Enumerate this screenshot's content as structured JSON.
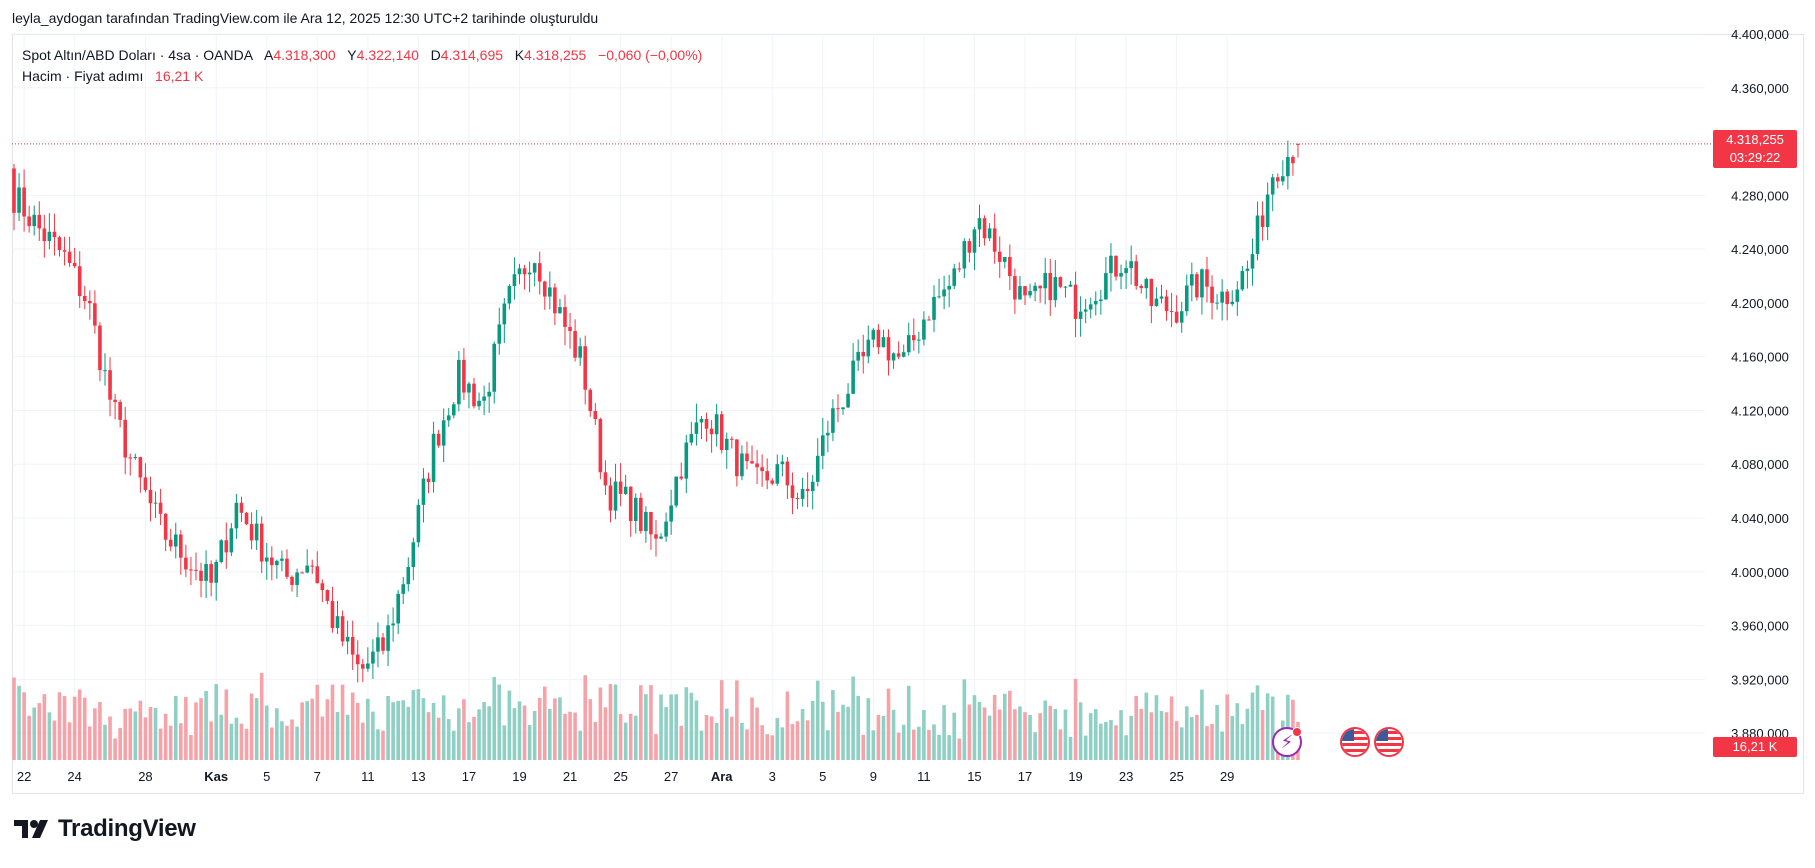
{
  "caption": "leyla_aydogan tarafından TradingView.com ile Ara 12, 2025 12:30 UTC+2 tarihinde oluşturuldu",
  "legend": {
    "symbol": "Spot Altın/ABD Doları · 4sa · OANDA",
    "open_label": "A",
    "open": "4.318,300",
    "high_label": "Y",
    "high": "4.322,140",
    "low_label": "D",
    "low": "4.314,695",
    "close_label": "K",
    "close": "4.318,255",
    "change": "−0,060 (−0,00%)",
    "volume_label": "Hacim · Fiyat adımı",
    "volume_value": "16,21 K"
  },
  "last_price": {
    "price": "4.318,255",
    "countdown": "03:29:22"
  },
  "volume_tag": "16,21 K",
  "brand": "TradingView",
  "colors": {
    "up": "#089981",
    "down": "#f23645",
    "up_vol": "#8fd0c4",
    "down_vol": "#f5a3a9",
    "grid": "#f0f3fa",
    "axis_text": "#131722"
  },
  "chart_data": {
    "type": "candlestick",
    "title": "Spot Altın/ABD Doları · 4sa · OANDA",
    "y_axis": {
      "ylim": [
        3860000,
        4400000
      ],
      "ticks": [
        3880000,
        3920000,
        3960000,
        4000000,
        4040000,
        4080000,
        4120000,
        4160000,
        4200000,
        4240000,
        4280000,
        4320000,
        4360000,
        4400000
      ],
      "tick_labels": [
        "3.880,000",
        "3.920,000",
        "3.960,000",
        "4.000,000",
        "4.040,000",
        "4.080,000",
        "4.120,000",
        "4.160,000",
        "4.200,000",
        "4.240,000",
        "4.280,000",
        "4.320,000",
        "4.360,000",
        "4.400,000"
      ]
    },
    "x_axis": {
      "tick_labels": [
        "22",
        "24",
        "28",
        "Kas",
        "5",
        "7",
        "11",
        "13",
        "17",
        "19",
        "21",
        "25",
        "27",
        "Ara",
        "3",
        "5",
        "9",
        "11",
        "15",
        "17",
        "19",
        "23",
        "25",
        "29"
      ],
      "bold_labels": [
        "Kas",
        "Ara"
      ],
      "tick_bar_index": [
        2,
        12,
        26,
        40,
        50,
        60,
        70,
        80,
        90,
        100,
        110,
        120,
        130,
        140,
        150,
        160,
        170,
        180,
        190,
        200,
        210,
        220,
        230,
        240
      ]
    },
    "levels": [
      4280000,
      4255000,
      4235000,
      4200000,
      4120000,
      4070000,
      4030000,
      4010000,
      3990000,
      4050000,
      4020000,
      3995000,
      4010000,
      3960000,
      3925000,
      3945000,
      4010000,
      4095000,
      4145000,
      4125000,
      4200000,
      4240000,
      4195000,
      4155000,
      4060000,
      4050000,
      4020000,
      4080000,
      4120000,
      4090000,
      4065000,
      4075000,
      4050000,
      4110000,
      4145000,
      4175000,
      4155000,
      4195000,
      4215000,
      4265000,
      4235000,
      4195000,
      4215000,
      4200000,
      4215000,
      4235000,
      4200000,
      4195000,
      4215000,
      4205000,
      4225000,
      4300000,
      4318255
    ],
    "last_price": 4318255,
    "last_volume": "16,21 K"
  }
}
